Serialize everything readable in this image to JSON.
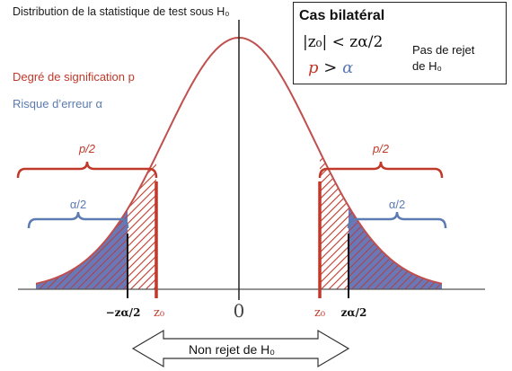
{
  "title": "Distribution de la statistique de test sous H₀",
  "legend": {
    "p_label": "Degré de signification p",
    "alpha_label": "Risque d’erreur α"
  },
  "box": {
    "title": "Cas bilatéral",
    "condition_z": "|z₀| < zα/2",
    "condition_p": "p",
    "condition_gt": ">",
    "condition_alpha": "α",
    "decision_line1": "Pas de rejet",
    "decision_line2": "de H₀"
  },
  "braces": {
    "p_half_left": "p/2",
    "p_half_right": "p/2",
    "alpha_half_left": "α/2",
    "alpha_half_right": "α/2"
  },
  "axis_labels": {
    "neg_z_alpha": "−zα/2",
    "z0_left": "z₀",
    "zero": "0",
    "z0_right": "z₀",
    "z_alpha": "zα/2"
  },
  "non_reject": "Non rejet de H₀",
  "colors": {
    "curve": "#c0504d",
    "p_region": "#c0392b",
    "alpha_region": "#5b7bb2",
    "text": "#111111"
  }
}
